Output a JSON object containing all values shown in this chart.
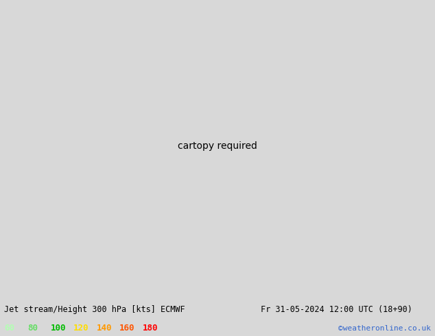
{
  "title_left": "Jet stream/Height 300 hPa [kts] ECMWF",
  "title_right": "Fr 31-05-2024 12:00 UTC (18+90)",
  "credit": "©weatheronline.co.uk",
  "legend_values": [
    "60",
    "80",
    "100",
    "120",
    "140",
    "160",
    "180"
  ],
  "legend_colors": [
    "#b2ffb2",
    "#66dd66",
    "#00bb00",
    "#ffdd00",
    "#ff9900",
    "#ff5500",
    "#ff0000"
  ],
  "bg_color": "#d8d8d8",
  "map_bg": "#f0f0f0",
  "land_color": "#c8c8c8",
  "contour_color": "#000000",
  "figsize": [
    6.34,
    4.9
  ],
  "dpi": 100,
  "title_fontsize": 8.5,
  "legend_fontsize": 9,
  "credit_fontsize": 8,
  "lon_min": -60,
  "lon_max": 60,
  "lat_min": 25,
  "lat_max": 75,
  "central_lon": 0,
  "central_lat": 50
}
